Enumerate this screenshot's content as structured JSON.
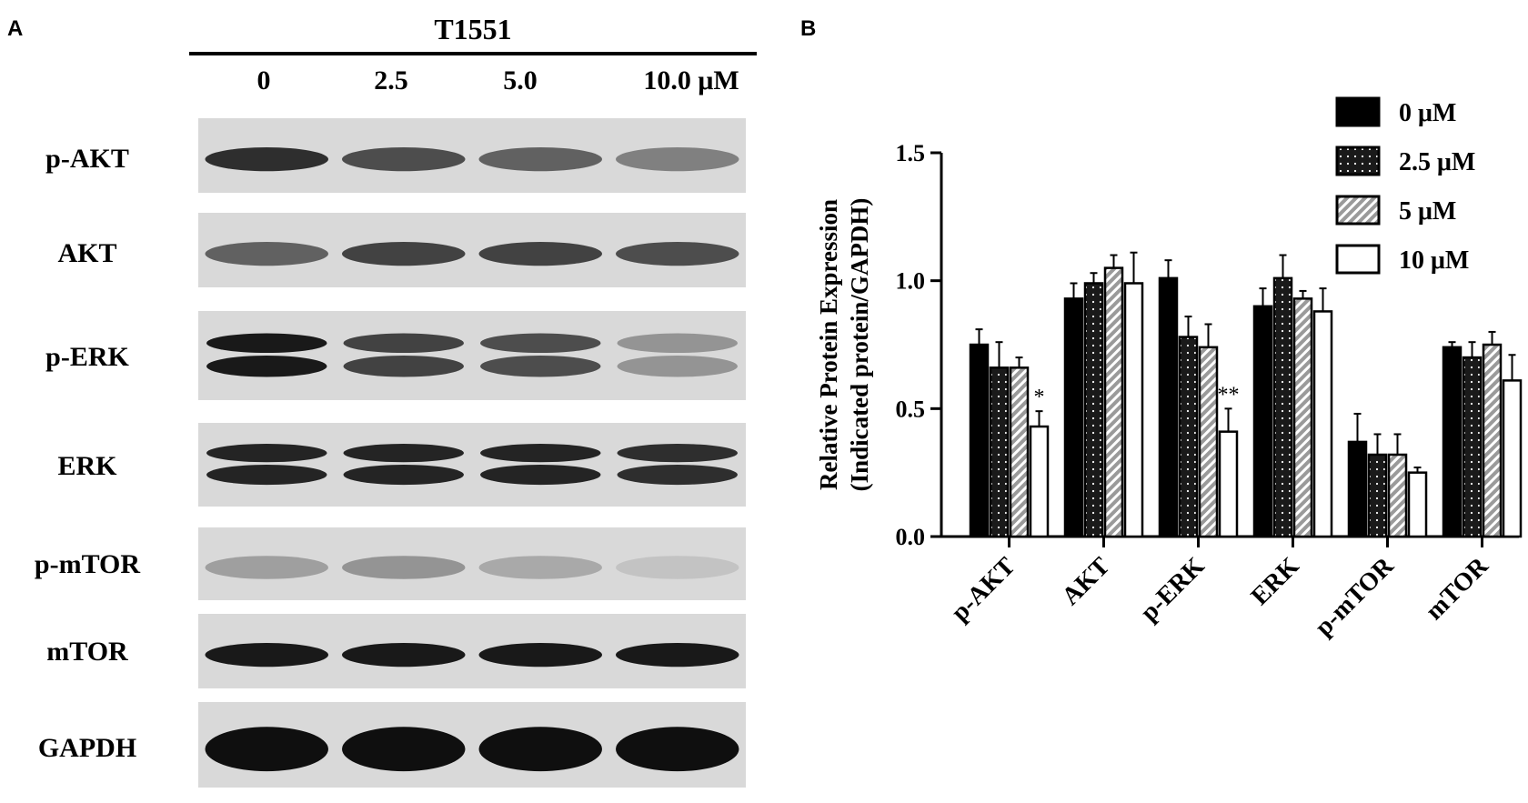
{
  "panel_a": {
    "letter": "A",
    "title": "T1551",
    "lanes": [
      "0",
      "2.5",
      "5.0",
      "10.0 μM"
    ],
    "blots": [
      {
        "label": "p-AKT",
        "intensities": [
          0.85,
          0.7,
          0.6,
          0.45
        ],
        "double_band": false
      },
      {
        "label": "AKT",
        "intensities": [
          0.6,
          0.75,
          0.75,
          0.7
        ],
        "double_band": false
      },
      {
        "label": "p-ERK",
        "intensities": [
          0.95,
          0.75,
          0.7,
          0.35
        ],
        "double_band": true
      },
      {
        "label": "ERK",
        "intensities": [
          0.9,
          0.9,
          0.9,
          0.85
        ],
        "double_band": true
      },
      {
        "label": "p-mTOR",
        "intensities": [
          0.3,
          0.35,
          0.25,
          0.12
        ],
        "double_band": false
      },
      {
        "label": "mTOR",
        "intensities": [
          0.95,
          0.95,
          0.95,
          0.95
        ],
        "double_band": false
      },
      {
        "label": "GAPDH",
        "intensities": [
          1.0,
          1.0,
          1.0,
          1.0
        ],
        "double_band": false
      }
    ]
  },
  "panel_b": {
    "letter": "B",
    "chart_data": {
      "type": "bar",
      "ylabel_line1": "Relative Protein Expression",
      "ylabel_line2": "(Indicated protein/GAPDH)",
      "ylim": [
        0,
        1.5
      ],
      "yticks": [
        "0.0",
        "0.5",
        "1.0",
        "1.5"
      ],
      "categories": [
        "p-AKT",
        "AKT",
        "p-ERK",
        "ERK",
        "p-mTOR",
        "mTOR"
      ],
      "series": [
        {
          "name": "0 μM",
          "values": [
            0.75,
            0.93,
            1.01,
            0.9,
            0.37,
            0.74
          ],
          "errors": [
            0.06,
            0.06,
            0.07,
            0.07,
            0.11,
            0.02
          ]
        },
        {
          "name": "2.5 μM",
          "values": [
            0.66,
            0.99,
            0.78,
            1.01,
            0.32,
            0.7
          ],
          "errors": [
            0.1,
            0.04,
            0.08,
            0.09,
            0.08,
            0.06
          ]
        },
        {
          "name": "5 μM",
          "values": [
            0.66,
            1.05,
            0.74,
            0.93,
            0.32,
            0.75
          ],
          "errors": [
            0.04,
            0.05,
            0.09,
            0.03,
            0.08,
            0.05
          ]
        },
        {
          "name": "10 μM",
          "values": [
            0.43,
            0.99,
            0.41,
            0.88,
            0.25,
            0.61
          ],
          "errors": [
            0.06,
            0.12,
            0.09,
            0.09,
            0.02,
            0.1
          ]
        }
      ],
      "annotations": [
        {
          "category": "p-AKT",
          "series": "10 μM",
          "text": "*"
        },
        {
          "category": "p-ERK",
          "series": "10 μM",
          "text": "**"
        }
      ],
      "legend": "top-right",
      "grid": false,
      "colors": {
        "s0": "#000000",
        "s1": "#1a1a1a",
        "s2": "#9a9a9a",
        "s3": "#ffffff"
      }
    }
  }
}
